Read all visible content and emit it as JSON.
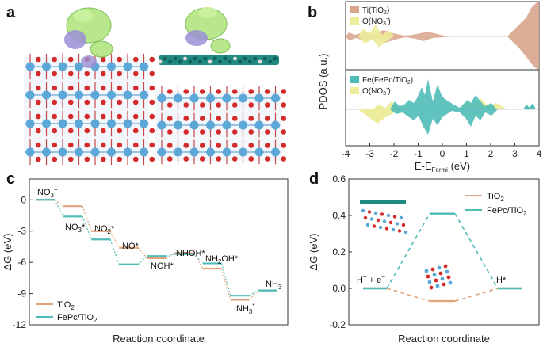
{
  "panels": {
    "a": "a",
    "b": "b",
    "c": "c",
    "d": "d"
  },
  "colors": {
    "tio2": "#e0a37a",
    "fepc": "#4fbdb7",
    "no3_yellow": "#ecec9a",
    "ti_fill": "#d9a58c",
    "isosurface_green": "#a8e07a",
    "isosurface_purple": "#9c8fd6",
    "atom_ti": "#5aa7d8",
    "atom_o": "#d42a2a"
  },
  "chart_data": [
    {
      "id": "b",
      "type": "area",
      "ylabel": "PDOS (a.u.)",
      "xlabel": "E-E",
      "xlabel_sub": "Fermi",
      "xlabel_unit": " (eV)",
      "xlim": [
        -4,
        4
      ],
      "xticks": [
        "-4",
        "-3",
        "-2",
        "-1",
        "0",
        "1",
        "2",
        "3",
        "4"
      ],
      "legend_top": [
        "Ti(TiO",
        "2",
        ")",
        "O(NO",
        "3",
        "-",
        ")"
      ],
      "legend_bottom": [
        "Fe(FePc/TiO",
        "2",
        ")",
        "O(NO",
        "3",
        "-",
        ")"
      ]
    },
    {
      "id": "c",
      "type": "line",
      "ylabel": "ΔG (eV)",
      "xlabel": "Reaction coordinate",
      "ylim": [
        -12,
        2
      ],
      "yticks": [
        "0",
        "-3",
        "-6",
        "-9",
        "-12"
      ],
      "series": [
        {
          "name": "TiO2",
          "values": [
            0,
            -0.6,
            -3.0,
            -4.6,
            -5.6,
            -5.1,
            -6.6,
            -9.6,
            -8.7
          ]
        },
        {
          "name": "FePc/TiO2",
          "values": [
            0,
            -1.6,
            -3.8,
            -6.2,
            -5.4,
            -5.2,
            -6.1,
            -9.2,
            -8.7
          ]
        }
      ],
      "step_labels": [
        "NO3-",
        "NO3*",
        "NO2*",
        "NO*",
        "NOH*",
        "NHOH*",
        "NH2OH*",
        "NH3*",
        "NH3"
      ],
      "legend": [
        "TiO2",
        "FePc/TiO2"
      ]
    },
    {
      "id": "d",
      "type": "line",
      "ylabel": "ΔG (eV)",
      "xlabel": "Reaction coordinate",
      "ylim": [
        -0.2,
        0.6
      ],
      "yticks": [
        "0.6",
        "0.4",
        "0.2",
        "0.0",
        "-0.2"
      ],
      "series": [
        {
          "name": "TiO2",
          "values": [
            0,
            -0.07,
            0
          ]
        },
        {
          "name": "FePc/TiO2",
          "values": [
            0,
            0.41,
            0
          ]
        }
      ],
      "step_labels": [
        "H+ + e-",
        "",
        "H*"
      ],
      "legend": [
        "TiO2",
        "FePc/TiO2"
      ]
    }
  ]
}
